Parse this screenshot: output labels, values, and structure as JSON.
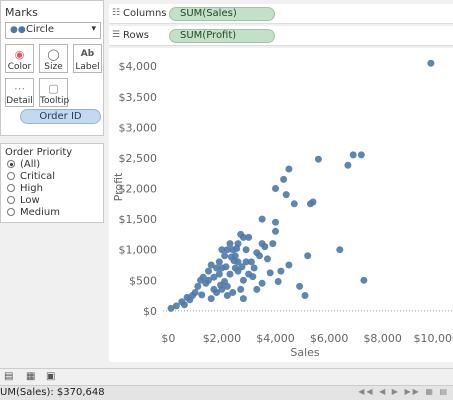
{
  "marks": {
    "title": "Marks",
    "mark_type": "Circle",
    "buttons": {
      "color": "Color",
      "size": "Size",
      "label": "Label",
      "detail": "Detail",
      "tooltip": "Tooltip"
    },
    "detail_pill": "Order ID"
  },
  "filter": {
    "title": "Order Priority",
    "options": [
      "(All)",
      "Critical",
      "High",
      "Low",
      "Medium"
    ],
    "selected": "(All)"
  },
  "shelves": {
    "columns_label": "Columns",
    "columns_pill": "SUM(Sales)",
    "rows_label": "Rows",
    "rows_pill": "SUM(Profit)"
  },
  "status": {
    "text": "UM(Sales): $370,648"
  },
  "colors": {
    "mark": "#4e79a7",
    "columns_pill": "#c5e0c8",
    "detail_pill": "#c4d8ee"
  },
  "chart_data": {
    "type": "scatter",
    "xlabel": "Sales",
    "ylabel": "Profit",
    "xlim": [
      -200,
      10400
    ],
    "ylim": [
      -150,
      4200
    ],
    "x_ticks": [
      0,
      2000,
      4000,
      6000,
      8000,
      10000
    ],
    "x_tick_labels": [
      "$0",
      "$2,000",
      "$4,000",
      "$6,000",
      "$8,000",
      "$10,000"
    ],
    "y_ticks": [
      0,
      500,
      1000,
      1500,
      2000,
      2500,
      3000,
      3500,
      4000
    ],
    "y_tick_labels": [
      "$0",
      "$500",
      "$1,000",
      "$1,500",
      "$2,000",
      "$2,500",
      "$3,000",
      "$3,500",
      "$4,000"
    ],
    "points": [
      [
        9800,
        4050
      ],
      [
        7200,
        2550
      ],
      [
        6900,
        2550
      ],
      [
        6700,
        2380
      ],
      [
        5600,
        2480
      ],
      [
        4500,
        2320
      ],
      [
        4300,
        2150
      ],
      [
        4000,
        2000
      ],
      [
        4400,
        1900
      ],
      [
        5400,
        1780
      ],
      [
        5300,
        1750
      ],
      [
        4700,
        1750
      ],
      [
        3500,
        1500
      ],
      [
        4000,
        1450
      ],
      [
        4000,
        1300
      ],
      [
        3900,
        1100
      ],
      [
        3600,
        1050
      ],
      [
        3500,
        1100
      ],
      [
        6400,
        1000
      ],
      [
        5200,
        900
      ],
      [
        4500,
        750
      ],
      [
        3000,
        1200
      ],
      [
        2800,
        1200
      ],
      [
        2700,
        1250
      ],
      [
        2600,
        1100
      ],
      [
        2400,
        1000
      ],
      [
        2500,
        900
      ],
      [
        2300,
        1100
      ],
      [
        2200,
        1000
      ],
      [
        2100,
        900
      ],
      [
        2000,
        1000
      ],
      [
        2600,
        800
      ],
      [
        2900,
        800
      ],
      [
        3100,
        800
      ],
      [
        3300,
        950
      ],
      [
        3200,
        700
      ],
      [
        3000,
        600
      ],
      [
        2800,
        500
      ],
      [
        2500,
        700
      ],
      [
        2300,
        600
      ],
      [
        2000,
        700
      ],
      [
        1900,
        800
      ],
      [
        1800,
        700
      ],
      [
        1700,
        550
      ],
      [
        1500,
        500
      ],
      [
        1400,
        450
      ],
      [
        1300,
        550
      ],
      [
        1200,
        500
      ],
      [
        1100,
        400
      ],
      [
        1000,
        300
      ],
      [
        900,
        250
      ],
      [
        700,
        220
      ],
      [
        500,
        150
      ],
      [
        300,
        80
      ],
      [
        100,
        40
      ],
      [
        2200,
        400
      ],
      [
        2000,
        350
      ],
      [
        1800,
        300
      ],
      [
        1600,
        200
      ],
      [
        2400,
        300
      ],
      [
        2700,
        350
      ],
      [
        3500,
        450
      ],
      [
        3800,
        620
      ],
      [
        4200,
        650
      ],
      [
        4900,
        400
      ],
      [
        5100,
        250
      ],
      [
        7300,
        500
      ],
      [
        1500,
        650
      ],
      [
        1700,
        350
      ],
      [
        2200,
        250
      ],
      [
        2800,
        200
      ],
      [
        600,
        100
      ],
      [
        800,
        180
      ],
      [
        3400,
        900
      ],
      [
        2600,
        650
      ],
      [
        2100,
        480
      ],
      [
        1900,
        600
      ],
      [
        2450,
        820
      ],
      [
        2150,
        720
      ],
      [
        3700,
        850
      ],
      [
        1600,
        750
      ],
      [
        2900,
        1000
      ],
      [
        3300,
        350
      ],
      [
        4100,
        480
      ],
      [
        1250,
        260
      ],
      [
        2550,
        1020
      ],
      [
        2350,
        880
      ],
      [
        1950,
        420
      ],
      [
        2750,
        720
      ],
      [
        3150,
        560
      ]
    ]
  }
}
